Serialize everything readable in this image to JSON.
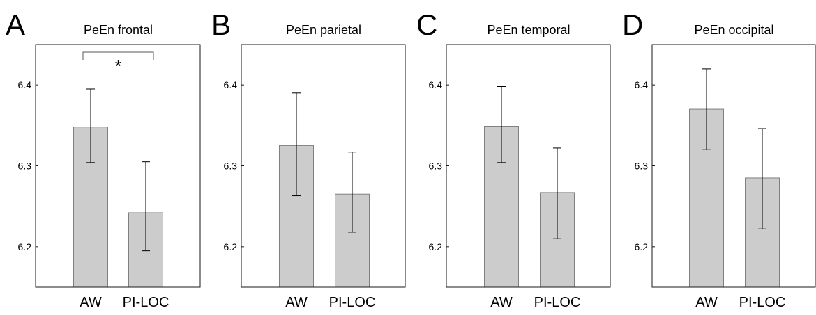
{
  "style": {
    "bar_fill": "#cccccc",
    "bar_stroke": "#808080",
    "frame_stroke": "#1a1a1a",
    "error_bar_color": "#000000"
  },
  "chart_data": [
    {
      "type": "bar",
      "panel_letter": "A",
      "title": "PeEn frontal",
      "categories": [
        "AW",
        "PI-LOC"
      ],
      "values": [
        6.348,
        6.242
      ],
      "error_low": [
        6.304,
        6.195
      ],
      "error_high": [
        6.395,
        6.305
      ],
      "ylim": [
        6.15,
        6.45
      ],
      "yticks": [
        6.2,
        6.3,
        6.4
      ],
      "ytick_labels": [
        "6.2",
        "6.3",
        "6.4"
      ],
      "grid": false,
      "significance": {
        "between": [
          "AW",
          "PI-LOC"
        ],
        "label": "*"
      }
    },
    {
      "type": "bar",
      "panel_letter": "B",
      "title": "PeEn parietal",
      "categories": [
        "AW",
        "PI-LOC"
      ],
      "values": [
        6.325,
        6.265
      ],
      "error_low": [
        6.263,
        6.218
      ],
      "error_high": [
        6.39,
        6.317
      ],
      "ylim": [
        6.15,
        6.45
      ],
      "yticks": [
        6.2,
        6.3,
        6.4
      ],
      "ytick_labels": [
        "6.2",
        "6.3",
        "6.4"
      ],
      "grid": false
    },
    {
      "type": "bar",
      "panel_letter": "C",
      "title": "PeEn temporal",
      "categories": [
        "AW",
        "PI-LOC"
      ],
      "values": [
        6.349,
        6.267
      ],
      "error_low": [
        6.304,
        6.21
      ],
      "error_high": [
        6.398,
        6.322
      ],
      "ylim": [
        6.15,
        6.45
      ],
      "yticks": [
        6.2,
        6.3,
        6.4
      ],
      "ytick_labels": [
        "6.2",
        "6.3",
        "6.4"
      ],
      "grid": false
    },
    {
      "type": "bar",
      "panel_letter": "D",
      "title": "PeEn occipital",
      "categories": [
        "AW",
        "PI-LOC"
      ],
      "values": [
        6.37,
        6.285
      ],
      "error_low": [
        6.32,
        6.222
      ],
      "error_high": [
        6.42,
        6.346
      ],
      "ylim": [
        6.15,
        6.45
      ],
      "yticks": [
        6.2,
        6.3,
        6.4
      ],
      "ytick_labels": [
        "6.2",
        "6.3",
        "6.4"
      ],
      "grid": false
    }
  ]
}
